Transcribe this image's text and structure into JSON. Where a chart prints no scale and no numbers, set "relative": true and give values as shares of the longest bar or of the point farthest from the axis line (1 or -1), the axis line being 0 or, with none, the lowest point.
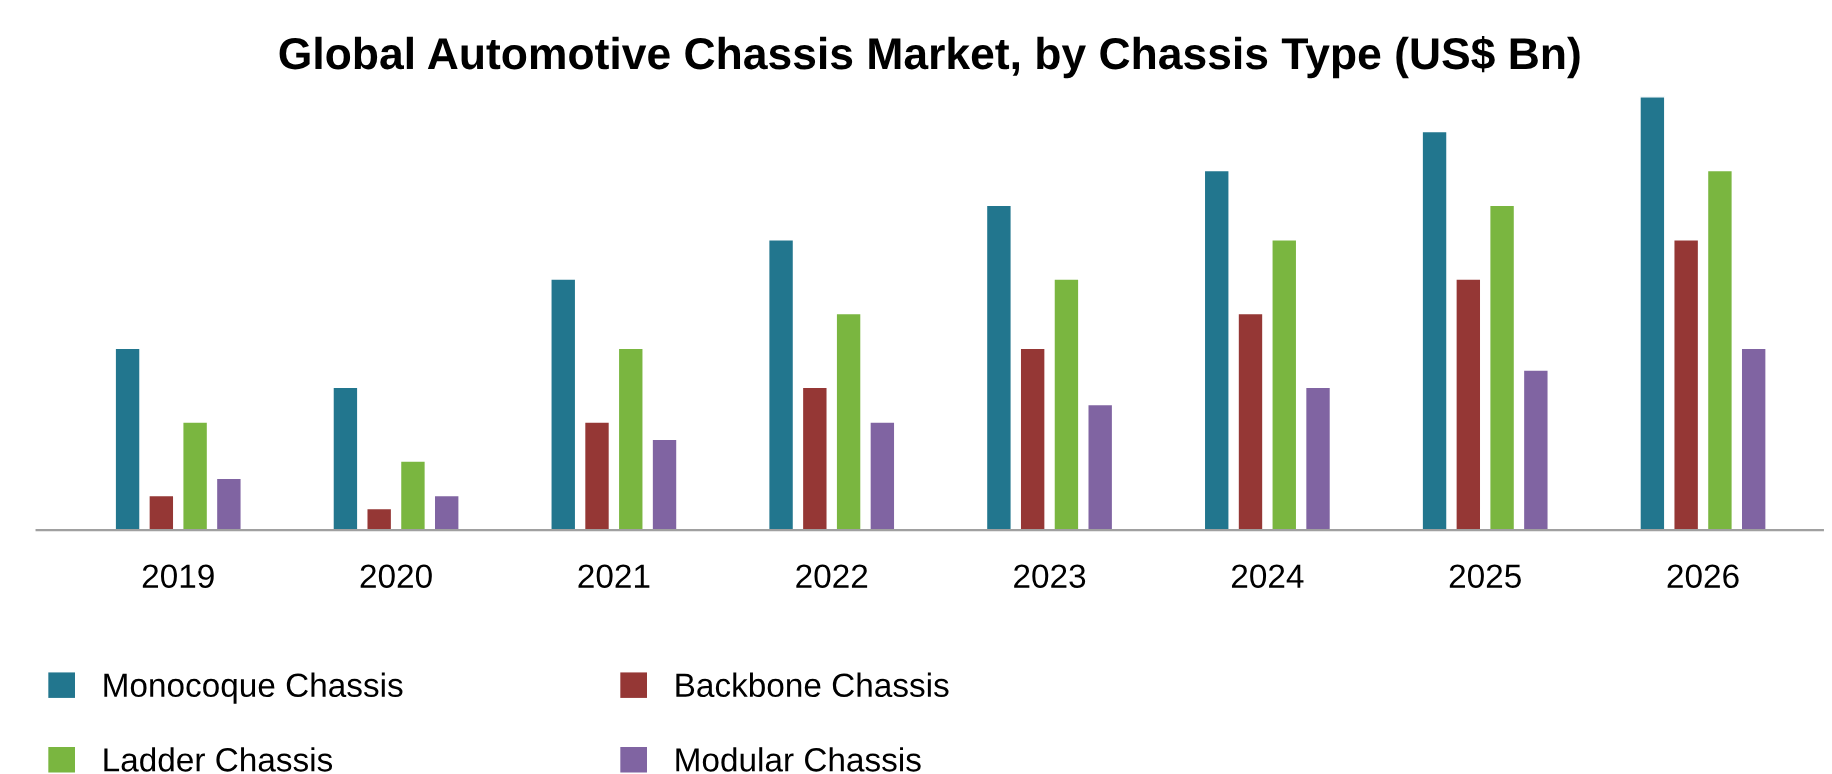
{
  "chart_data": {
    "type": "bar",
    "title": "Global Automotive Chassis Market, by Chassis Type (US$ Bn)",
    "relative": true,
    "legend": "bottom",
    "grid": false,
    "categories": [
      "2019",
      "2020",
      "2021",
      "2022",
      "2023",
      "2024",
      "2025",
      "2026"
    ],
    "series": [
      {
        "name": "Monocoque Chassis",
        "color": "#22768e",
        "values": [
          0.42,
          0.33,
          0.58,
          0.67,
          0.75,
          0.83,
          0.92,
          1
        ]
      },
      {
        "name": "Backbone Chassis",
        "color": "#953735",
        "values": [
          0.08,
          0.05,
          0.25,
          0.33,
          0.42,
          0.5,
          0.58,
          0.67
        ]
      },
      {
        "name": "Ladder Chassis",
        "color": "#7ab640",
        "values": [
          0.25,
          0.16,
          0.42,
          0.5,
          0.58,
          0.67,
          0.75,
          0.83
        ]
      },
      {
        "name": "Modular Chassis",
        "color": "#8064a2",
        "values": [
          0.12,
          0.08,
          0.21,
          0.25,
          0.29,
          0.33,
          0.37,
          0.42
        ]
      }
    ]
  }
}
